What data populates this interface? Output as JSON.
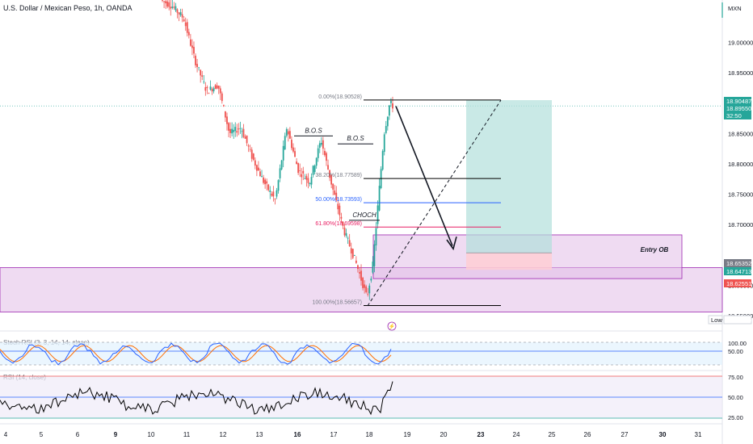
{
  "header": {
    "title": "U.S. Dollar / Mexican Peso, 1h, OANDA",
    "currency": "MXN"
  },
  "panes": {
    "stoch_label": "Stoch RSI (3, 3, 14, 14, close)",
    "rsi_label": "RSI (14, close)"
  },
  "colors": {
    "bull": "#26a69a",
    "bear": "#ef5350",
    "ob_zone": "#e1bee7",
    "ob_border": "#9c27b0",
    "tp_zone": "#b2dfdb",
    "sl_zone": "#ffcdd2",
    "stoch_k": "#2962ff",
    "stoch_d": "#ff6d00",
    "rsi_line": "#000000"
  },
  "chart_data": {
    "type": "candlestick",
    "symbol": "USDMXN",
    "timeframe": "1h",
    "ylim": [
      18.53,
      19.07
    ],
    "y_ticks": [
      {
        "label": "19.00000",
        "value": 19.0
      },
      {
        "label": "18.95000",
        "value": 18.95
      },
      {
        "label": "18.85000",
        "value": 18.85
      },
      {
        "label": "18.80000",
        "value": 18.8
      },
      {
        "label": "18.75000",
        "value": 18.75
      },
      {
        "label": "18.70000",
        "value": 18.7
      },
      {
        "label": "18.60000",
        "value": 18.6
      },
      {
        "label": "18.55000",
        "value": 18.55
      }
    ],
    "x_ticks": [
      "4",
      "5",
      "6",
      "9",
      "10",
      "11",
      "12",
      "13",
      "16",
      "17",
      "18",
      "19",
      "20",
      "23",
      "24",
      "25",
      "26",
      "27",
      "30",
      "31"
    ],
    "x_ticks_bold": [
      "9",
      "16",
      "23",
      "30"
    ],
    "price_badges": [
      {
        "label": "18.90487",
        "value": 18.90487,
        "color": "#26a69a"
      },
      {
        "label": "18.89550",
        "value": 18.8955,
        "color": "#26a69a"
      },
      {
        "label": "32:50",
        "value": 18.887,
        "color": "#26a69a"
      },
      {
        "label": "18.65352",
        "value": 18.65352,
        "color": "#787b86"
      },
      {
        "label": "18.64713",
        "value": 18.64713,
        "color": "#26a69a"
      },
      {
        "label": "18.62551",
        "value": 18.62551,
        "color": "#ef5350"
      },
      {
        "label": "18.56645",
        "value": 18.56645,
        "color": "#ffffff"
      }
    ],
    "low_marker": "Low",
    "fib_levels": [
      {
        "label": "0.00%(18.90528)",
        "value": 18.90528,
        "color": "#000000"
      },
      {
        "label": "38.20%(18.77589)",
        "value": 18.77589,
        "color": "#000000"
      },
      {
        "label": "50.00%(18.73593)",
        "value": 18.73593,
        "color": "#2962ff"
      },
      {
        "label": "61.80%(18.69598)",
        "value": 18.69598,
        "color": "#e91e63"
      },
      {
        "label": "100.00%(18.56657)",
        "value": 18.56657,
        "color": "#000000"
      }
    ],
    "annotations": [
      "B.O.S",
      "B.O.S",
      "CHOCH"
    ],
    "entry_label": "Entry OB",
    "oscillators": {
      "stoch_ticks": [
        "100.00",
        "50.00"
      ],
      "rsi_ticks": [
        "75.00",
        "50.00",
        "25.00"
      ]
    },
    "price_path": [
      {
        "t": 0,
        "p": 19.07
      },
      {
        "t": 4,
        "p": 19.06
      },
      {
        "t": 8,
        "p": 19.04
      },
      {
        "t": 12,
        "p": 18.97
      },
      {
        "t": 16,
        "p": 18.92
      },
      {
        "t": 20,
        "p": 18.93
      },
      {
        "t": 24,
        "p": 18.85
      },
      {
        "t": 28,
        "p": 18.86
      },
      {
        "t": 32,
        "p": 18.81
      },
      {
        "t": 36,
        "p": 18.77
      },
      {
        "t": 40,
        "p": 18.74
      },
      {
        "t": 44,
        "p": 18.86
      },
      {
        "t": 48,
        "p": 18.79
      },
      {
        "t": 52,
        "p": 18.77
      },
      {
        "t": 56,
        "p": 18.84
      },
      {
        "t": 60,
        "p": 18.76
      },
      {
        "t": 64,
        "p": 18.69
      },
      {
        "t": 68,
        "p": 18.64
      },
      {
        "t": 72,
        "p": 18.58
      },
      {
        "t": 74,
        "p": 18.63
      },
      {
        "t": 78,
        "p": 18.85
      },
      {
        "t": 80,
        "p": 18.9
      },
      {
        "t": 81,
        "p": 18.8955
      }
    ]
  }
}
